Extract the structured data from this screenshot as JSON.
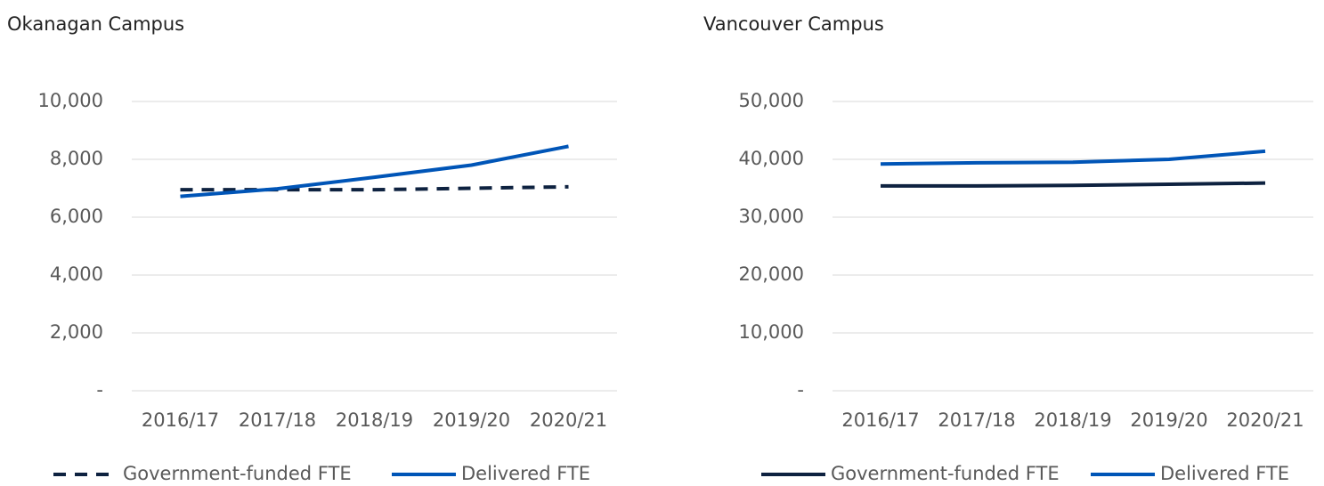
{
  "chart_data": [
    {
      "type": "line",
      "title": "Okanagan Campus",
      "categories": [
        "2016/17",
        "2017/18",
        "2018/19",
        "2019/20",
        "2020/21"
      ],
      "series": [
        {
          "name": "Government-funded FTE",
          "color": "#0e2240",
          "style": "dashed",
          "values": [
            6950,
            6950,
            6950,
            7000,
            7050
          ]
        },
        {
          "name": "Delivered FTE",
          "color": "#0055b7",
          "style": "solid",
          "values": [
            6720,
            6980,
            7380,
            7800,
            8450
          ]
        }
      ],
      "ylim": [
        0,
        10000
      ],
      "yticks": [
        {
          "value": 0,
          "label": "-"
        },
        {
          "value": 2000,
          "label": "2,000"
        },
        {
          "value": 4000,
          "label": "4,000"
        },
        {
          "value": 6000,
          "label": "6,000"
        },
        {
          "value": 8000,
          "label": "8,000"
        },
        {
          "value": 10000,
          "label": "10,000"
        }
      ],
      "grid": true,
      "legend": "bottom"
    },
    {
      "type": "line",
      "title": "Vancouver Campus",
      "categories": [
        "2016/17",
        "2017/18",
        "2018/19",
        "2019/20",
        "2020/21"
      ],
      "series": [
        {
          "name": "Government-funded FTE",
          "color": "#0e2240",
          "style": "solid",
          "values": [
            35400,
            35400,
            35500,
            35700,
            35900
          ]
        },
        {
          "name": "Delivered FTE",
          "color": "#0055b7",
          "style": "solid",
          "values": [
            39200,
            39400,
            39500,
            40000,
            41400
          ]
        }
      ],
      "ylim": [
        0,
        50000
      ],
      "yticks": [
        {
          "value": 0,
          "label": "-"
        },
        {
          "value": 10000,
          "label": "10,000"
        },
        {
          "value": 20000,
          "label": "20,000"
        },
        {
          "value": 30000,
          "label": "30,000"
        },
        {
          "value": 40000,
          "label": "40,000"
        },
        {
          "value": 50000,
          "label": "50,000"
        }
      ],
      "grid": true,
      "legend": "bottom"
    }
  ]
}
